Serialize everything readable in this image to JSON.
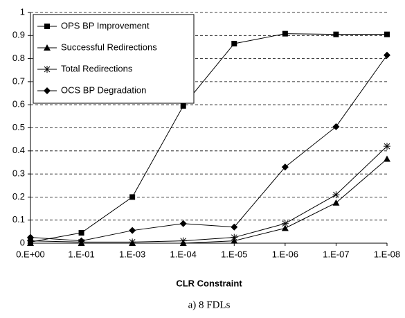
{
  "chart_data": {
    "type": "line",
    "x_label": "CLR Constraint",
    "caption": "a) 8 FDLs",
    "categories": [
      "0.E+00",
      "1.E-01",
      "1.E-03",
      "1.E-04",
      "1.E-05",
      "1.E-06",
      "1.E-07",
      "1.E-08"
    ],
    "series": [
      {
        "name": "OPS BP Improvement",
        "color": "#000000",
        "marker": "square",
        "values": [
          0.005,
          0.045,
          0.2,
          0.595,
          0.865,
          0.908,
          0.905,
          0.905
        ]
      },
      {
        "name": "Successful Redirections",
        "color": "#000000",
        "marker": "triangle",
        "values": [
          0,
          0,
          0,
          0,
          0.01,
          0.065,
          0.175,
          0.365
        ]
      },
      {
        "name": "Total Redirections",
        "color": "#000000",
        "marker": "asterisk",
        "values": [
          0.01,
          0.005,
          0.005,
          0.01,
          0.025,
          0.085,
          0.21,
          0.42
        ]
      },
      {
        "name": "OCS BP Degradation",
        "color": "#000000",
        "marker": "diamond",
        "values": [
          0.025,
          0.01,
          0.055,
          0.085,
          0.07,
          0.33,
          0.505,
          0.815
        ]
      }
    ],
    "ylim": [
      0,
      1
    ],
    "yticks": [
      0,
      0.1,
      0.2,
      0.3,
      0.4,
      0.5,
      0.6,
      0.7,
      0.8,
      0.9,
      1
    ],
    "grid": true,
    "legend": "top-left"
  }
}
